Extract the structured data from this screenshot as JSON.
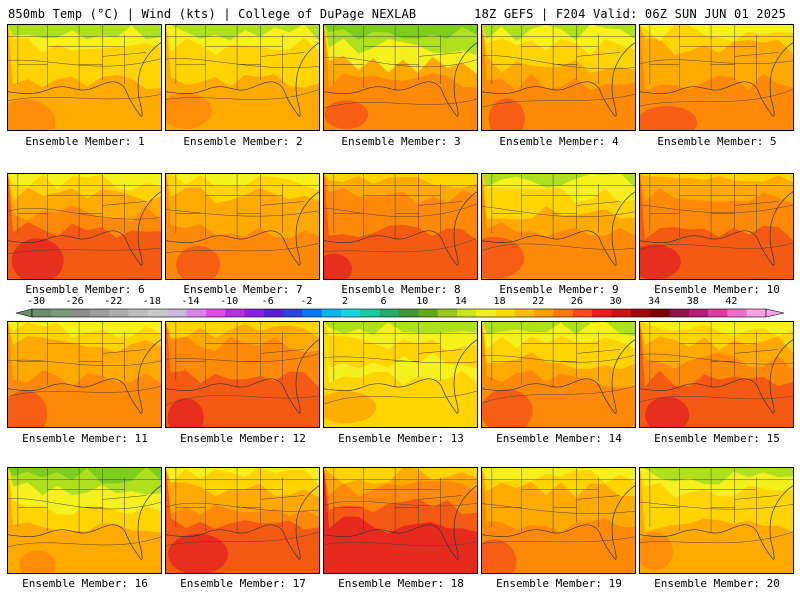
{
  "header": {
    "left": "850mb Temp (°C) | Wind (kts) | College of DuPage NEXLAB",
    "right": "18Z GEFS | F204 Valid: 06Z SUN JUN 01 2025"
  },
  "colorbar": {
    "ticks": [
      "-30",
      "-26",
      "-22",
      "-18",
      "-14",
      "-10",
      "-6",
      "-2",
      "2",
      "6",
      "10",
      "14",
      "18",
      "22",
      "26",
      "30",
      "34",
      "38",
      "42"
    ],
    "colors": [
      "#6e8c6e",
      "#7c9a7c",
      "#8c8c8c",
      "#9c9c9c",
      "#acacac",
      "#bdbdbd",
      "#c8c8c8",
      "#c9b8de",
      "#dc82f0",
      "#e04ee6",
      "#b432dc",
      "#8c1edc",
      "#5a1ed2",
      "#2846dc",
      "#0a78f0",
      "#10b4f0",
      "#1ed2e6",
      "#1ec8a0",
      "#28aa6e",
      "#3c9632",
      "#5faa1e",
      "#9bc81e",
      "#c8e61e",
      "#f0f01e",
      "#ffdc00",
      "#ffbe00",
      "#ffa000",
      "#ff7814",
      "#f54b19",
      "#e61e1e",
      "#c81414",
      "#a00a0a",
      "#7a0000",
      "#8c1446",
      "#b41e78",
      "#dc3ca0",
      "#f06ec8",
      "#ffa0e6"
    ]
  },
  "panels": [
    {
      "caption": "Ensemble Member: 1"
    },
    {
      "caption": "Ensemble Member: 2"
    },
    {
      "caption": "Ensemble Member: 3"
    },
    {
      "caption": "Ensemble Member: 4"
    },
    {
      "caption": "Ensemble Member: 5"
    },
    {
      "caption": "Ensemble Member: 6"
    },
    {
      "caption": "Ensemble Member: 7"
    },
    {
      "caption": "Ensemble Member: 8"
    },
    {
      "caption": "Ensemble Member: 9"
    },
    {
      "caption": "Ensemble Member: 10"
    },
    {
      "caption": "Ensemble Member: 11"
    },
    {
      "caption": "Ensemble Member: 12"
    },
    {
      "caption": "Ensemble Member: 13"
    },
    {
      "caption": "Ensemble Member: 14"
    },
    {
      "caption": "Ensemble Member: 15"
    },
    {
      "caption": "Ensemble Member: 16"
    },
    {
      "caption": "Ensemble Member: 17"
    },
    {
      "caption": "Ensemble Member: 18"
    },
    {
      "caption": "Ensemble Member: 19"
    },
    {
      "caption": "Ensemble Member: 20"
    }
  ],
  "palette": {
    "lightgreen": "#aee01e",
    "green": "#7ccd1e",
    "darkgreen": "#4fa832",
    "yellow": "#f5f01e",
    "gold": "#ffd400",
    "orange": "#ffaa00",
    "darkorange": "#ff8a0a",
    "redorange": "#f55a14",
    "red": "#e62a1e"
  }
}
